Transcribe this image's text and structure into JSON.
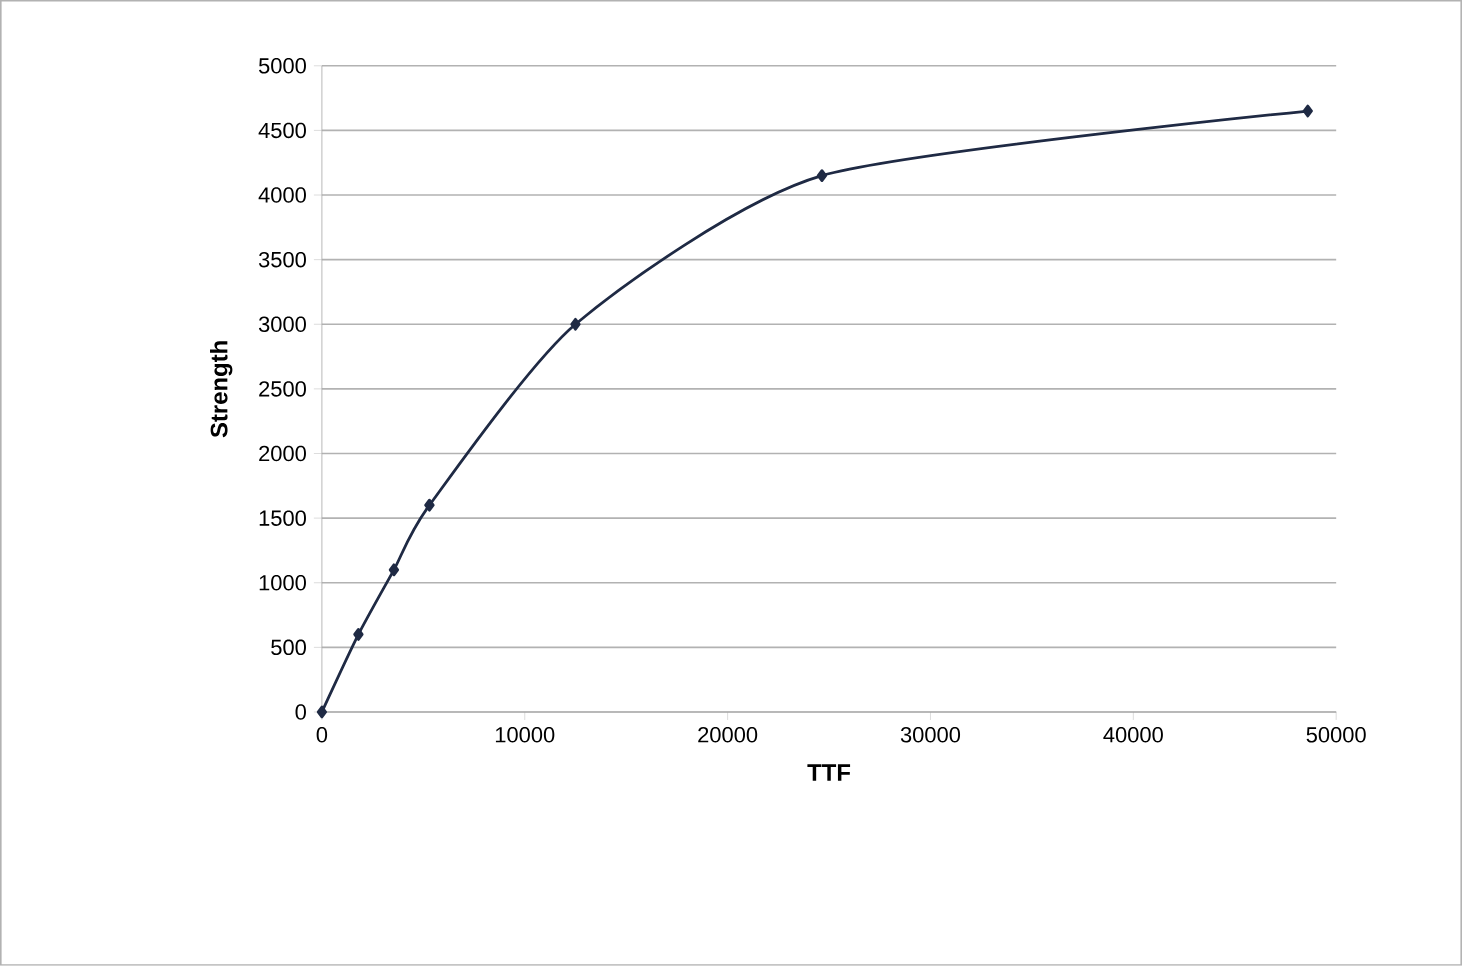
{
  "chart_data": {
    "type": "line",
    "xlabel": "TTF",
    "ylabel": "Strength",
    "x": [
      0,
      1800,
      3550,
      5300,
      12500,
      24650,
      48600
    ],
    "series": [
      {
        "color": "#1f2a44",
        "values": [
          0,
          600,
          1100,
          1600,
          3000,
          4150,
          4650
        ]
      }
    ],
    "xlim": [
      0,
      50000
    ],
    "ylim": [
      0,
      5000
    ],
    "xticks": [
      0,
      10000,
      20000,
      30000,
      40000,
      50000
    ],
    "yticks": [
      0,
      500,
      1000,
      1500,
      2000,
      2500,
      3000,
      3500,
      4000,
      4500,
      5000
    ],
    "grid": "y",
    "marker": "diamond",
    "line_style": "solid"
  }
}
